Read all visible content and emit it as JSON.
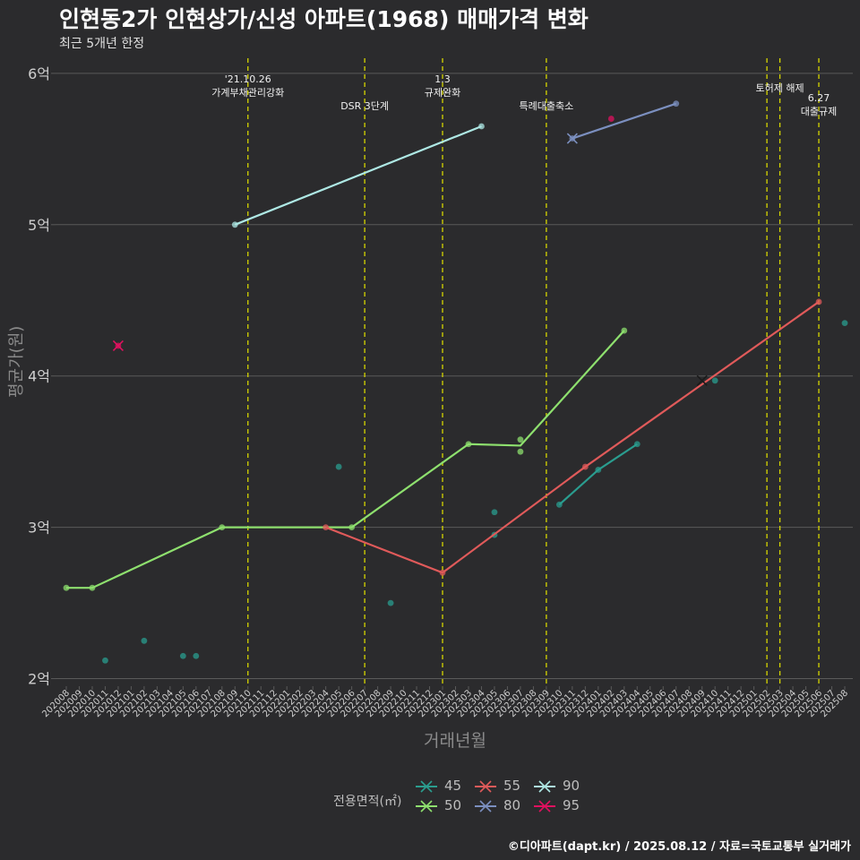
{
  "title": "인현동2가 인현상가/신성 아파트(1968) 매매가격 변화",
  "subtitle": "최근 5개년 한정",
  "caption": "©디아파트(dapt.kr) / 2025.08.12 / 자료=국토교통부 실거래가",
  "colors": {
    "bg": "#2b2b2d",
    "grid": "#5a5a5a",
    "vline": "#d6d600",
    "axis_text": "#cfcfcf"
  },
  "chart_data": {
    "type": "line",
    "title": "인현동2가 인현상가/신성 아파트(1968) 매매가격 변화",
    "xlabel": "거래년월",
    "ylabel": "평균가(원)",
    "ylim": [
      1.95,
      6.1
    ],
    "y_ticks": [
      {
        "v": 2,
        "label": "2억"
      },
      {
        "v": 3,
        "label": "3억"
      },
      {
        "v": 4,
        "label": "4억"
      },
      {
        "v": 5,
        "label": "5억"
      },
      {
        "v": 6,
        "label": "6억"
      }
    ],
    "categories": [
      "202008",
      "202009",
      "202010",
      "202011",
      "202012",
      "202101",
      "202102",
      "202103",
      "202104",
      "202105",
      "202106",
      "202107",
      "202108",
      "202109",
      "202110",
      "202111",
      "202112",
      "202201",
      "202202",
      "202203",
      "202204",
      "202205",
      "202206",
      "202207",
      "202208",
      "202209",
      "202210",
      "202211",
      "202212",
      "202301",
      "202302",
      "202303",
      "202304",
      "202305",
      "202306",
      "202307",
      "202308",
      "202309",
      "202310",
      "202311",
      "202312",
      "202401",
      "202402",
      "202403",
      "202404",
      "202405",
      "202406",
      "202407",
      "202408",
      "202409",
      "202410",
      "202411",
      "202412",
      "202501",
      "202502",
      "202503",
      "202504",
      "202505",
      "202506",
      "202507",
      "202508"
    ],
    "legend_title": "전용면적(㎡)",
    "series": [
      {
        "name": "45",
        "color": "#2a9d8f",
        "line": [
          [
            "202310",
            3.15
          ],
          [
            "202401",
            3.38
          ],
          [
            "202404",
            3.55
          ]
        ],
        "points": [
          [
            "202011",
            2.12
          ],
          [
            "202102",
            2.25
          ],
          [
            "202105",
            2.15
          ],
          [
            "202106",
            2.15
          ],
          [
            "202205",
            3.4
          ],
          [
            "202209",
            2.5
          ],
          [
            "202305",
            3.1
          ],
          [
            "202305",
            2.95
          ],
          [
            "202310",
            3.15
          ],
          [
            "202401",
            3.38
          ],
          [
            "202404",
            3.55
          ],
          [
            "202410",
            3.97
          ],
          [
            "202508",
            4.35
          ]
        ]
      },
      {
        "name": "50",
        "color": "#8ee06e",
        "line": [
          [
            "202008",
            2.6
          ],
          [
            "202010",
            2.6
          ],
          [
            "202108",
            3.0
          ],
          [
            "202206",
            3.0
          ],
          [
            "202303",
            3.55
          ],
          [
            "202307",
            3.54
          ],
          [
            "202403",
            4.3
          ]
        ],
        "points": [
          [
            "202008",
            2.6
          ],
          [
            "202010",
            2.6
          ],
          [
            "202108",
            3.0
          ],
          [
            "202206",
            3.0
          ],
          [
            "202303",
            3.55
          ],
          [
            "202307",
            3.58
          ],
          [
            "202307",
            3.5
          ],
          [
            "202403",
            4.3
          ]
        ]
      },
      {
        "name": "55",
        "color": "#e05a5a",
        "line": [
          [
            "202204",
            3.0
          ],
          [
            "202301",
            2.7
          ],
          [
            "202312",
            3.4
          ],
          [
            "202506",
            4.49
          ]
        ],
        "points": [
          [
            "202204",
            3.0
          ],
          [
            "202301",
            2.7
          ],
          [
            "202312",
            3.4
          ],
          [
            "202506",
            4.49
          ]
        ]
      },
      {
        "name": "80",
        "color": "#7b8fbf",
        "line": [
          [
            "202311",
            5.57
          ],
          [
            "202407",
            5.8
          ]
        ],
        "points": [
          [
            "202311",
            5.57
          ],
          [
            "202407",
            5.8
          ]
        ],
        "crosses": [
          [
            "202311",
            5.57
          ]
        ]
      },
      {
        "name": "90",
        "color": "#aee8e4",
        "line": [
          [
            "202109",
            5.0
          ],
          [
            "202304",
            5.65
          ]
        ],
        "points": [
          [
            "202109",
            5.0
          ],
          [
            "202304",
            5.65
          ]
        ]
      },
      {
        "name": "95",
        "color": "#e0115f",
        "line": [],
        "points": [
          [
            "202012",
            4.2
          ],
          [
            "202402",
            5.7
          ]
        ],
        "crosses": [
          [
            "202012",
            4.2
          ]
        ]
      }
    ],
    "extra_crosses": [
      {
        "x": "202409",
        "y": 3.97,
        "color": "#1a1a1a"
      }
    ],
    "events": [
      {
        "x": "202110",
        "lines": [
          "'21.10.26",
          "가계부채관리강화"
        ],
        "row": 0
      },
      {
        "x": "202207",
        "lines": [
          "DSR 3단계"
        ],
        "row": 2
      },
      {
        "x": "202301",
        "lines": [
          "1.3",
          "규제완화"
        ],
        "row": 0
      },
      {
        "x": "202309",
        "lines": [
          "특례대출축소"
        ],
        "row": 2
      },
      {
        "x": "202502",
        "lines": [],
        "row": 1
      },
      {
        "x": "202503",
        "lines": [
          "토허제 해제"
        ],
        "row": 1
      },
      {
        "x": "202506",
        "lines": [
          "6.27",
          "대출규제"
        ],
        "row": 1.5
      }
    ]
  }
}
